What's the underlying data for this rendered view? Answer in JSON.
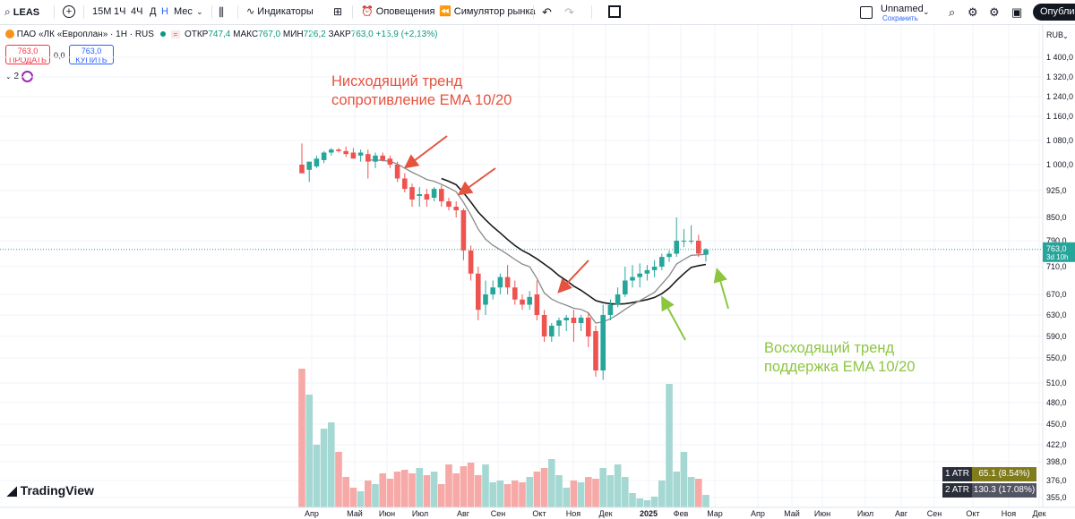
{
  "toolbar": {
    "symbol": "LEAS",
    "intervals": [
      "15М",
      "1Ч",
      "4Ч",
      "Д",
      "Н",
      "Мес"
    ],
    "active_interval": "Н",
    "indicators_label": "Индикаторы",
    "alerts_label": "Оповещения",
    "replay_label": "Симулятор рынка",
    "layout_name": "Unnamed",
    "layout_status": "Сохранить",
    "publish_label": "Опубликовать"
  },
  "legend": {
    "title": "ПАО «ЛК «Европлан» · 1Н · RUS",
    "open_label": "ОТКР",
    "open": "747,4",
    "high_label": "МАКС",
    "high": "767,0",
    "low_label": "МИН",
    "low": "726,2",
    "close_label": "ЗАКР",
    "close": "763,0",
    "change": "+15,9 (+2,13%)"
  },
  "trade": {
    "sell_price": "763,0",
    "sell_label": "ПРОДАТЬ",
    "spread": "0,0",
    "buy_price": "763,0",
    "buy_label": "КУПИТЬ"
  },
  "indicator_count": "2",
  "currency": "RUB",
  "annotations": {
    "down_line1": "Нисходящий тренд",
    "down_line2": "сопротивление EMA 10/20",
    "up_line1": "Восходящий тренд",
    "up_line2": "поддержка EMA 10/20"
  },
  "atr": [
    {
      "label": "1 ATR",
      "value": "65.1 (8.54%)",
      "color": "#807c1c"
    },
    {
      "label": "2 ATR",
      "value": "130.3 (17.08%)",
      "color": "#545563"
    }
  ],
  "brand": "TradingView",
  "colors": {
    "up": "#26a69a",
    "down": "#ef5350",
    "ema10": "#8a8a8a",
    "ema20": "#1a1a1a",
    "price_line": "#26a69a",
    "annotation_red": "#e5533f",
    "annotation_green": "#8cc63f"
  },
  "chart_data": {
    "type": "candlestick",
    "price_axis": [
      "1 400,0",
      "1 320,0",
      "1 240,0",
      "1 160,0",
      "1 080,0",
      "1 000,0",
      "925,0",
      "850,0",
      "790,0",
      "710,0",
      "670,0",
      "630,0",
      "590,0",
      "550,0",
      "510,0",
      "480,0",
      "450,0",
      "422,0",
      "398,0",
      "376,0",
      "355,0"
    ],
    "time_axis": [
      "Апр",
      "Май",
      "Июн",
      "Июл",
      "Авг",
      "Сен",
      "Окт",
      "Ноя",
      "Дек",
      "2025",
      "Фев",
      "Мар",
      "Апр",
      "Май",
      "Июн",
      "Июл",
      "Авг",
      "Сен",
      "Окт",
      "Ноя",
      "Дек"
    ],
    "last_price": "763,0",
    "countdown": "3d 10h",
    "candles": [
      {
        "o": 1000,
        "h": 1070,
        "l": 975,
        "c": 975
      },
      {
        "o": 985,
        "h": 1005,
        "l": 950,
        "c": 1010
      },
      {
        "o": 995,
        "h": 1030,
        "l": 990,
        "c": 1020
      },
      {
        "o": 1015,
        "h": 1045,
        "l": 1005,
        "c": 1040
      },
      {
        "o": 1040,
        "h": 1055,
        "l": 1030,
        "c": 1050
      },
      {
        "o": 1050,
        "h": 1055,
        "l": 1040,
        "c": 1045
      },
      {
        "o": 1045,
        "h": 1060,
        "l": 1025,
        "c": 1035
      },
      {
        "o": 1040,
        "h": 1055,
        "l": 1020,
        "c": 1020
      },
      {
        "o": 1030,
        "h": 1050,
        "l": 1010,
        "c": 1040
      },
      {
        "o": 1035,
        "h": 1050,
        "l": 960,
        "c": 1010
      },
      {
        "o": 1010,
        "h": 1040,
        "l": 990,
        "c": 1030
      },
      {
        "o": 1030,
        "h": 1040,
        "l": 1010,
        "c": 1015
      },
      {
        "o": 1020,
        "h": 1030,
        "l": 990,
        "c": 1000
      },
      {
        "o": 1000,
        "h": 1010,
        "l": 950,
        "c": 960
      },
      {
        "o": 960,
        "h": 975,
        "l": 920,
        "c": 930
      },
      {
        "o": 935,
        "h": 945,
        "l": 880,
        "c": 900
      },
      {
        "o": 910,
        "h": 935,
        "l": 880,
        "c": 915
      },
      {
        "o": 915,
        "h": 930,
        "l": 880,
        "c": 900
      },
      {
        "o": 905,
        "h": 935,
        "l": 895,
        "c": 930
      },
      {
        "o": 930,
        "h": 940,
        "l": 880,
        "c": 895
      },
      {
        "o": 895,
        "h": 905,
        "l": 870,
        "c": 880
      },
      {
        "o": 880,
        "h": 895,
        "l": 850,
        "c": 870
      },
      {
        "o": 870,
        "h": 875,
        "l": 730,
        "c": 760
      },
      {
        "o": 760,
        "h": 775,
        "l": 690,
        "c": 700
      },
      {
        "o": 700,
        "h": 710,
        "l": 620,
        "c": 640
      },
      {
        "o": 650,
        "h": 690,
        "l": 630,
        "c": 670
      },
      {
        "o": 670,
        "h": 690,
        "l": 660,
        "c": 680
      },
      {
        "o": 680,
        "h": 700,
        "l": 670,
        "c": 695
      },
      {
        "o": 695,
        "h": 715,
        "l": 670,
        "c": 680
      },
      {
        "o": 680,
        "h": 690,
        "l": 650,
        "c": 660
      },
      {
        "o": 660,
        "h": 670,
        "l": 640,
        "c": 650
      },
      {
        "o": 650,
        "h": 675,
        "l": 640,
        "c": 665
      },
      {
        "o": 670,
        "h": 690,
        "l": 620,
        "c": 630
      },
      {
        "o": 630,
        "h": 640,
        "l": 580,
        "c": 590
      },
      {
        "o": 590,
        "h": 615,
        "l": 580,
        "c": 610
      },
      {
        "o": 610,
        "h": 625,
        "l": 590,
        "c": 620
      },
      {
        "o": 620,
        "h": 630,
        "l": 600,
        "c": 625
      },
      {
        "o": 625,
        "h": 640,
        "l": 580,
        "c": 615
      },
      {
        "o": 615,
        "h": 630,
        "l": 600,
        "c": 625
      },
      {
        "o": 625,
        "h": 635,
        "l": 570,
        "c": 590
      },
      {
        "o": 600,
        "h": 610,
        "l": 520,
        "c": 530
      },
      {
        "o": 530,
        "h": 650,
        "l": 515,
        "c": 630
      },
      {
        "o": 630,
        "h": 660,
        "l": 620,
        "c": 650
      },
      {
        "o": 650,
        "h": 680,
        "l": 645,
        "c": 670
      },
      {
        "o": 670,
        "h": 710,
        "l": 665,
        "c": 690
      },
      {
        "o": 690,
        "h": 715,
        "l": 680,
        "c": 695
      },
      {
        "o": 695,
        "h": 720,
        "l": 680,
        "c": 700
      },
      {
        "o": 700,
        "h": 715,
        "l": 690,
        "c": 705
      },
      {
        "o": 705,
        "h": 730,
        "l": 695,
        "c": 710
      },
      {
        "o": 710,
        "h": 750,
        "l": 705,
        "c": 740
      },
      {
        "o": 740,
        "h": 760,
        "l": 725,
        "c": 750
      },
      {
        "o": 750,
        "h": 850,
        "l": 740,
        "c": 790
      },
      {
        "o": 790,
        "h": 820,
        "l": 770,
        "c": 790
      },
      {
        "o": 790,
        "h": 830,
        "l": 780,
        "c": 790
      },
      {
        "o": 790,
        "h": 805,
        "l": 740,
        "c": 750
      },
      {
        "o": 747,
        "h": 767,
        "l": 726,
        "c": 763
      }
    ],
    "ema10": [
      null,
      null,
      null,
      null,
      null,
      null,
      null,
      null,
      null,
      1015,
      1015,
      1014,
      1011,
      1002,
      990,
      978,
      968,
      957,
      952,
      943,
      933,
      922,
      892,
      857,
      820,
      794,
      776,
      762,
      748,
      732,
      718,
      710,
      693,
      672,
      661,
      654,
      649,
      643,
      641,
      634,
      615,
      617,
      623,
      631,
      641,
      650,
      658,
      666,
      673,
      685,
      697,
      718,
      732,
      745,
      746,
      748
    ],
    "ema20": [
      null,
      null,
      null,
      null,
      null,
      null,
      null,
      null,
      null,
      null,
      null,
      null,
      null,
      null,
      null,
      null,
      null,
      null,
      null,
      960,
      952,
      942,
      919,
      893,
      865,
      844,
      826,
      810,
      793,
      775,
      760,
      748,
      734,
      718,
      706,
      697,
      690,
      682,
      676,
      668,
      658,
      654,
      652,
      651,
      652,
      654,
      657,
      660,
      664,
      671,
      679,
      690,
      700,
      709,
      713,
      717
    ],
    "volume": [
      155,
      126,
      70,
      88,
      95,
      62,
      34,
      22,
      18,
      30,
      26,
      38,
      32,
      40,
      42,
      38,
      44,
      36,
      40,
      26,
      48,
      38,
      46,
      50,
      36,
      48,
      28,
      30,
      26,
      30,
      28,
      34,
      40,
      44,
      54,
      36,
      22,
      30,
      28,
      34,
      32,
      44,
      36,
      48,
      34,
      16,
      10,
      8,
      12,
      30,
      138,
      40,
      62,
      34,
      32,
      14
    ]
  }
}
